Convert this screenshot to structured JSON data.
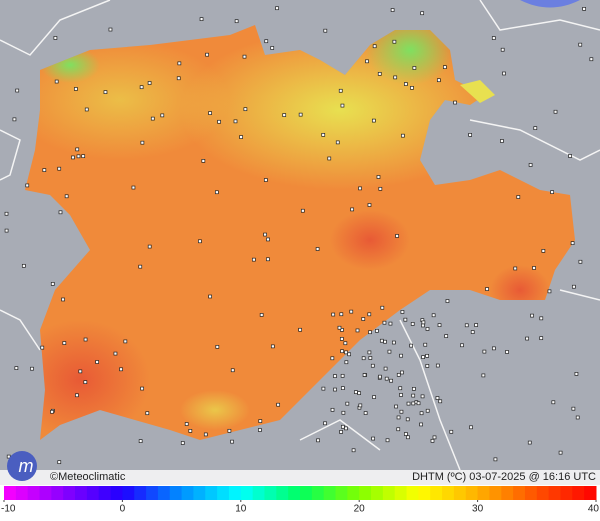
{
  "credit": "©Meteoclimatic",
  "status": "DHTM (ºC)  03-07-2025 @ 16:16 UTC",
  "scale": {
    "ticks": [
      -10,
      0,
      10,
      20,
      30,
      40
    ],
    "colors": [
      "#ff00ff",
      "#8a00ff",
      "#1f00ff",
      "#0090ff",
      "#00ffff",
      "#00ff60",
      "#80ff00",
      "#ffff00",
      "#ffb000",
      "#ff5000",
      "#ff0000"
    ]
  }
}
